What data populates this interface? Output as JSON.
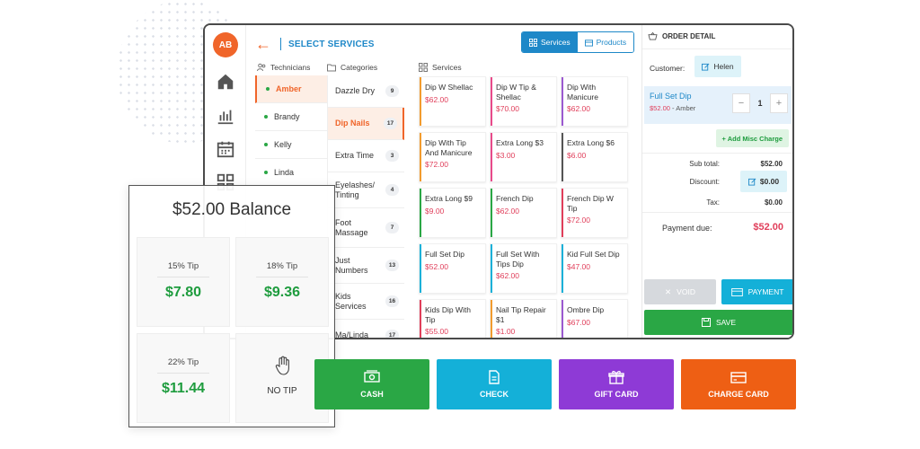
{
  "sidebar": {
    "avatar_initials": "AB",
    "icons": [
      "home-icon",
      "chart-icon",
      "calendar-icon",
      "grid-icon",
      "logout-icon"
    ]
  },
  "header": {
    "title": "SELECT SERVICES",
    "toggle": {
      "services_label": "Services",
      "products_label": "Products",
      "active": "Services"
    }
  },
  "columns": {
    "technicians": "Technicians",
    "categories": "Categories",
    "services": "Services"
  },
  "technicians": [
    {
      "name": "Amber",
      "active": true
    },
    {
      "name": "Brandy",
      "active": false
    },
    {
      "name": "Kelly",
      "active": false
    },
    {
      "name": "Linda",
      "active": false
    }
  ],
  "categories": [
    {
      "name": "Dazzle Dry",
      "count": "9"
    },
    {
      "name": "Dip Nails",
      "count": "17",
      "active": true
    },
    {
      "name": "Extra Time",
      "count": "3"
    },
    {
      "name": "Eyelashes/ Tinting",
      "count": "4"
    },
    {
      "name": "Foot Massage",
      "count": "7"
    },
    {
      "name": "Just Numbers",
      "count": "13"
    },
    {
      "name": "Kids Services",
      "count": "16"
    },
    {
      "name": "Ma/Linda",
      "count": "17"
    }
  ],
  "services": [
    {
      "name": "Dip W Shellac",
      "price": "$62.00",
      "color": "#f29b2e"
    },
    {
      "name": "Dip W Tip & Shellac",
      "price": "$70.00",
      "color": "#e84a8a"
    },
    {
      "name": "Dip With Manicure",
      "price": "$62.00",
      "color": "#9b59d0"
    },
    {
      "name": "Dip With Tip And Manicure",
      "price": "$72.00",
      "color": "#f29b2e"
    },
    {
      "name": "Extra Long $3",
      "price": "$3.00",
      "color": "#e84a8a"
    },
    {
      "name": "Extra Long $6",
      "price": "$6.00",
      "color": "#555555"
    },
    {
      "name": "Extra Long $9",
      "price": "$9.00",
      "color": "#2aa745"
    },
    {
      "name": "French Dip",
      "price": "$62.00",
      "color": "#2aa745"
    },
    {
      "name": "French Dip W Tip",
      "price": "$72.00",
      "color": "#e03e5a"
    },
    {
      "name": "Full Set Dip",
      "price": "$52.00",
      "color": "#14b0d8"
    },
    {
      "name": "Full Set With Tips Dip",
      "price": "$62.00",
      "color": "#14b0d8"
    },
    {
      "name": "Kid Full Set Dip",
      "price": "$47.00",
      "color": "#14b0d8"
    },
    {
      "name": "Kids Dip With Tip",
      "price": "$55.00",
      "color": "#e03e5a"
    },
    {
      "name": "Nail Tip Repair $1",
      "price": "$1.00",
      "color": "#f29b2e"
    },
    {
      "name": "Ombre Dip",
      "price": "$67.00",
      "color": "#9b59d0"
    }
  ],
  "order": {
    "title": "ORDER DETAIL",
    "customer_label": "Customer:",
    "customer_name": "Helen",
    "item": {
      "name": "Full Set Dip",
      "price": "$52.00",
      "separator": " - ",
      "tech": "Amber",
      "qty": "1"
    },
    "misc_label": "+ Add Misc Charge",
    "subtotal_label": "Sub total:",
    "subtotal": "$52.00",
    "discount_label": "Discount:",
    "discount": "$0.00",
    "tax_label": "Tax:",
    "tax": "$0.00",
    "due_label": "Payment due:",
    "due": "$52.00",
    "void_label": "VOID",
    "payment_label": "PAYMENT",
    "save_label": "SAVE"
  },
  "tip": {
    "title": "$52.00 Balance",
    "options": [
      {
        "pct": "15% Tip",
        "amount": "$7.80"
      },
      {
        "pct": "18% Tip",
        "amount": "$9.36"
      },
      {
        "pct": "22% Tip",
        "amount": "$11.44"
      }
    ],
    "no_tip_label": "NO TIP"
  },
  "payment_methods": [
    {
      "label": "CASH",
      "color": "#2aa745",
      "icon": "cash-icon"
    },
    {
      "label": "CHECK",
      "color": "#14b0d8",
      "icon": "check-icon"
    },
    {
      "label": "GIFT CARD",
      "color": "#8e3ad6",
      "icon": "gift-card-icon"
    },
    {
      "label": "CHARGE CARD",
      "color": "#ee5f14",
      "icon": "charge-card-icon"
    }
  ]
}
